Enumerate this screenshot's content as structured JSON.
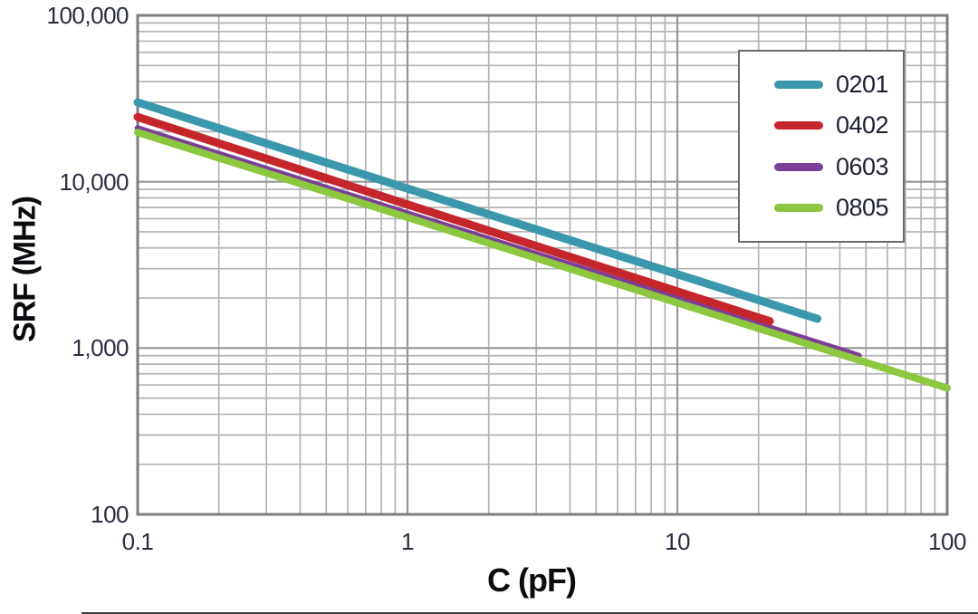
{
  "colors": {
    "background": "#ffffff",
    "grid_minor": "#b3b3b3",
    "grid_major": "#979797",
    "frame": "#7d7d7d",
    "tick_text": "#2a2d3e",
    "axis_title_text": "#0c0c10"
  },
  "legend": {
    "position": "top-right",
    "items": [
      {
        "label": "0201",
        "color": "#3b97ab"
      },
      {
        "label": "0402",
        "color": "#c5262c"
      },
      {
        "label": "0603",
        "color": "#7c3f98"
      },
      {
        "label": "0805",
        "color": "#8dc63f"
      }
    ]
  },
  "chart_data": {
    "type": "line",
    "xlabel": "C (pF)",
    "ylabel": "SRF (MHz)",
    "x_scale": "log",
    "y_scale": "log",
    "xlim": [
      0.1,
      100
    ],
    "ylim": [
      100,
      100000
    ],
    "grid": {
      "major": true,
      "minor": true
    },
    "legend_position": "top-right",
    "x_ticks": [
      {
        "value": 0.1,
        "label": "0.1"
      },
      {
        "value": 1,
        "label": "1"
      },
      {
        "value": 10,
        "label": "10"
      },
      {
        "value": 100,
        "label": "100"
      }
    ],
    "y_ticks": [
      {
        "value": 100,
        "label": "100"
      },
      {
        "value": 1000,
        "label": "1,000"
      },
      {
        "value": 10000,
        "label": "10,000"
      },
      {
        "value": 100000,
        "label": "100,000"
      }
    ],
    "series": [
      {
        "name": "0201",
        "color": "#3b97ab",
        "stroke_width": 9,
        "points": [
          [
            0.1,
            30000
          ],
          [
            1,
            9100
          ],
          [
            10,
            2780
          ],
          [
            33,
            1500
          ]
        ]
      },
      {
        "name": "0402",
        "color": "#c5262c",
        "stroke_width": 9,
        "points": [
          [
            0.1,
            24500
          ],
          [
            1,
            7300
          ],
          [
            10,
            2190
          ],
          [
            22,
            1450
          ]
        ]
      },
      {
        "name": "0603",
        "color": "#7c3f98",
        "stroke_width": 6.5,
        "points": [
          [
            0.1,
            21000
          ],
          [
            1,
            6450
          ],
          [
            10,
            1990
          ],
          [
            47,
            900
          ]
        ]
      },
      {
        "name": "0805",
        "color": "#8dc63f",
        "stroke_width": 8,
        "points": [
          [
            0.1,
            19800
          ],
          [
            1,
            6100
          ],
          [
            10,
            1870
          ],
          [
            100,
            575
          ]
        ]
      }
    ]
  }
}
